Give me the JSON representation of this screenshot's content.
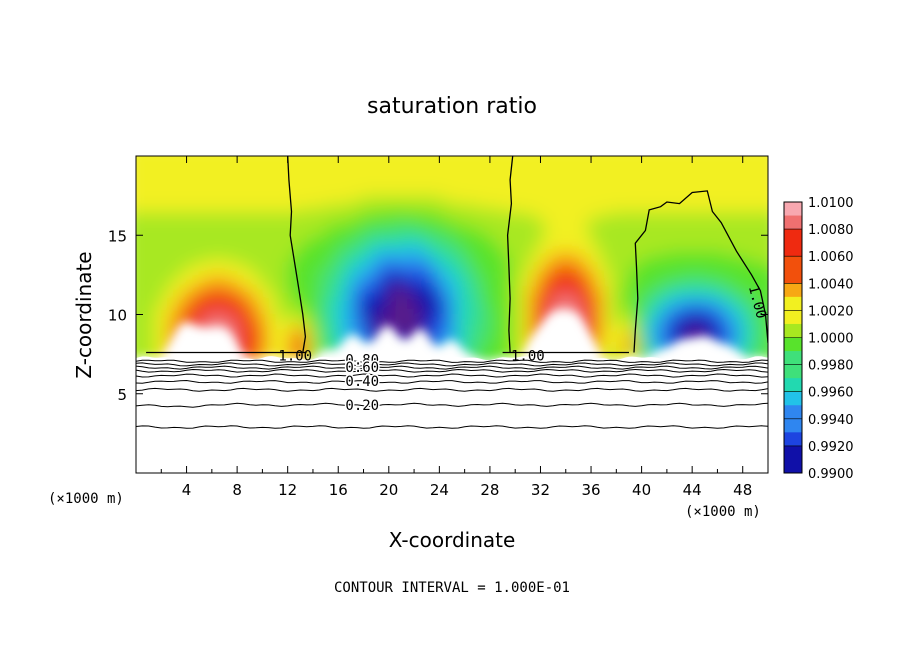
{
  "chart_data": {
    "type": "heatmap",
    "title": "saturation ratio",
    "xlabel": "X-coordinate",
    "ylabel": "Z-coordinate",
    "x_unit": "(×1000 m)",
    "z_unit": "(×1000 m)",
    "xlim": [
      0,
      50
    ],
    "ylim": [
      0,
      20
    ],
    "x_ticks": [
      4,
      8,
      12,
      16,
      20,
      24,
      28,
      32,
      36,
      40,
      44,
      48
    ],
    "y_ticks": [
      5,
      10,
      15
    ],
    "footer": "CONTOUR INTERVAL = 1.000E-01",
    "colorbar": {
      "min": 0.99,
      "max": 1.01,
      "tick_labels": [
        "1.0100",
        "1.0080",
        "1.0060",
        "1.0040",
        "1.0020",
        "1.0000",
        "0.9980",
        "0.9960",
        "0.9940",
        "0.9920",
        "0.9900"
      ]
    },
    "colormap": [
      [
        0.99,
        "#5a1a8a"
      ],
      [
        0.9915,
        "#1010a8"
      ],
      [
        0.993,
        "#1d44e0"
      ],
      [
        0.9945,
        "#2f86f0"
      ],
      [
        0.996,
        "#22c2e8"
      ],
      [
        0.9972,
        "#22d9b0"
      ],
      [
        0.9985,
        "#3fe07a"
      ],
      [
        1.0,
        "#58e32c"
      ],
      [
        1.0012,
        "#a8e820"
      ],
      [
        1.0025,
        "#f2f020"
      ],
      [
        1.004,
        "#f7a814"
      ],
      [
        1.0055,
        "#f2500c"
      ],
      [
        1.0075,
        "#ef2a10"
      ],
      [
        1.009,
        "#f07070"
      ],
      [
        1.01,
        "#f8a8b0"
      ]
    ],
    "features": [
      {
        "kind": "supersaturated_dome",
        "x": 6.5,
        "z_top": 12.3
      },
      {
        "kind": "supersaturated_dome",
        "x": 34,
        "z_top": 13.5
      },
      {
        "kind": "subsaturated_pocket",
        "x": 20.5,
        "z_top": 16.5
      },
      {
        "kind": "subsaturated_pocket",
        "x": 44,
        "z_top": 12.5
      }
    ],
    "contours": [
      {
        "level": 1.0,
        "label": "1.00",
        "where": "x≈12.4 and z≈7.6"
      },
      {
        "level": 1.0,
        "label": "1.00",
        "where": "x≈31 and z≈7.6"
      },
      {
        "level": 1.0,
        "label": "1.00",
        "where": "x≈49.5 and z≈10.8"
      },
      {
        "level": 0.8,
        "label": "0.80",
        "where": "x≈18 and z≈7.2"
      },
      {
        "level": 0.6,
        "label": "0.60",
        "where": "x≈18 and z≈6.8"
      },
      {
        "level": 0.4,
        "label": "0.40",
        "where": "x≈18 and z≈5.8"
      },
      {
        "level": 0.2,
        "label": "0.20",
        "where": "x≈18 and z≈4.3"
      }
    ]
  }
}
